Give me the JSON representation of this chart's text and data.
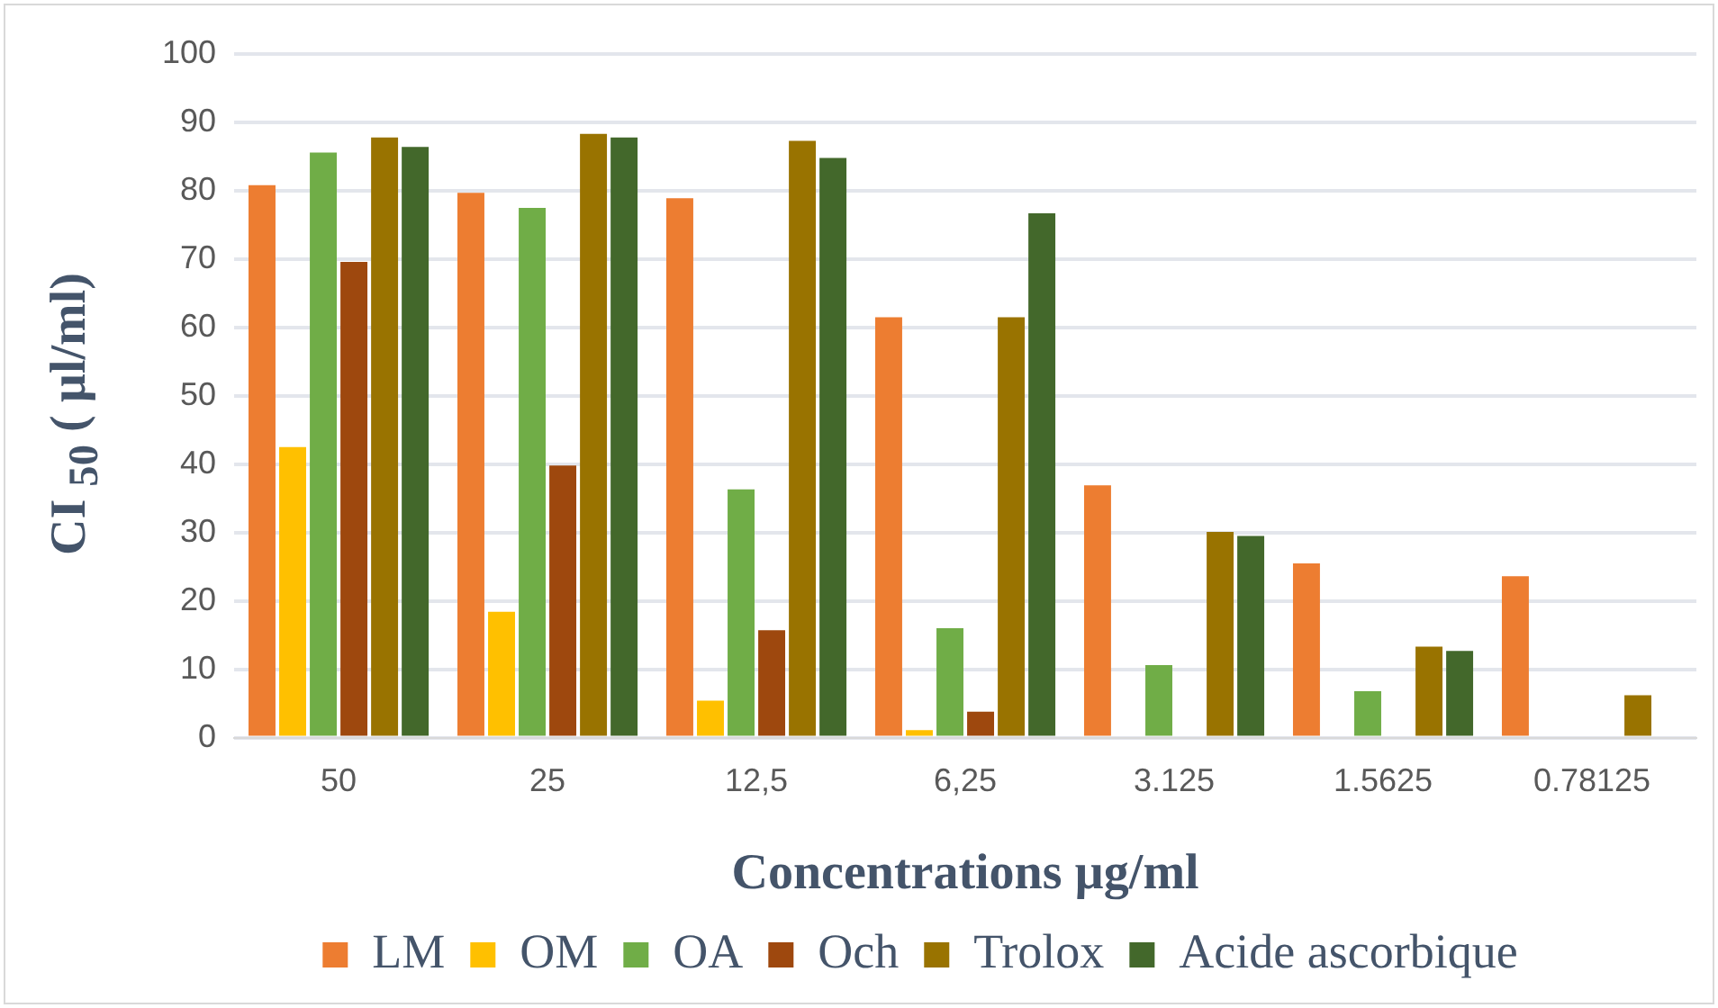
{
  "chart_data": {
    "type": "bar",
    "xlabel": "Concentrations µg/ml",
    "ylabel": "CI $_{50}$ ( µl/ml)",
    "categories": [
      "50",
      "25",
      "12,5",
      "6,25",
      "3.125",
      "1.5625",
      "0.78125"
    ],
    "series": [
      {
        "name": "LM",
        "color": "#ed7d31",
        "values": [
          80.8,
          79.7,
          78.9,
          61.5,
          36.9,
          25.5,
          23.6
        ]
      },
      {
        "name": "OM",
        "color": "#ffc000",
        "values": [
          42.5,
          18.4,
          5.4,
          1.1,
          0,
          0,
          0
        ]
      },
      {
        "name": "OA",
        "color": "#70ad47",
        "values": [
          85.6,
          77.5,
          36.3,
          16,
          10.6,
          6.8,
          0
        ]
      },
      {
        "name": "Och",
        "color": "#9e480e",
        "values": [
          69.6,
          39.8,
          15.7,
          3.8,
          0,
          0,
          0
        ]
      },
      {
        "name": "Trolox",
        "color": "#997300",
        "values": [
          87.8,
          88.3,
          87.3,
          61.5,
          30.1,
          13.3,
          6.2
        ]
      },
      {
        "name": "Acide ascorbique",
        "color": "#43682b",
        "values": [
          86.4,
          87.8,
          84.8,
          76.7,
          29.5,
          12.7,
          null
        ]
      }
    ],
    "ylim": [
      0,
      100
    ],
    "yticks": [
      0,
      10,
      20,
      30,
      40,
      50,
      60,
      70,
      80,
      90,
      100
    ],
    "grid": "y",
    "legend": "bottom"
  }
}
